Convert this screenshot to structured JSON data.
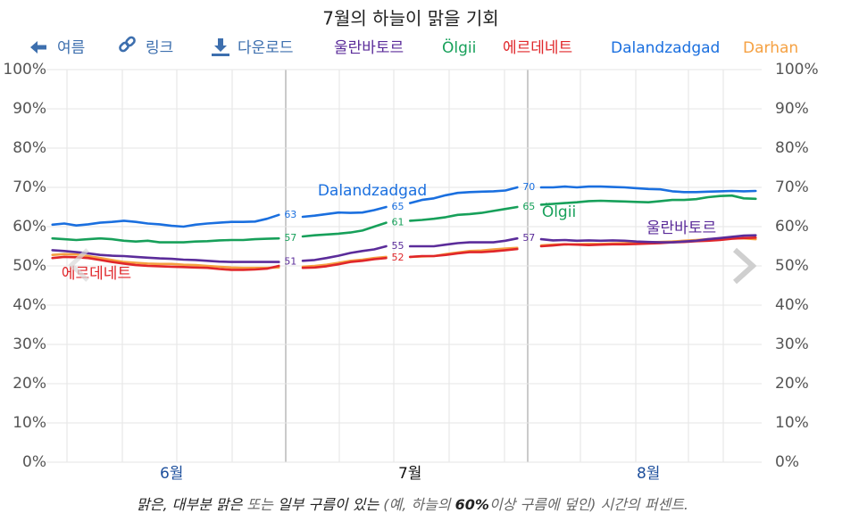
{
  "toolbar": {
    "back": "여름",
    "link": "링크",
    "download": "다운로드"
  },
  "chart_data": {
    "type": "line",
    "title": "7월의 하늘이 맑을 기회",
    "caption": [
      "맑은, 대부분 맑은",
      " 또는 ",
      "일부 구름이 있는",
      " (예, 하늘의 ",
      "60%",
      "이상 구름에 덮인) 시간의 퍼센트."
    ],
    "categories": [
      null,
      null,
      null,
      null,
      null,
      null,
      null,
      null,
      null,
      null,
      "6월",
      null,
      null,
      null,
      null,
      null,
      null,
      null,
      null,
      null,
      null,
      null,
      null,
      null,
      null,
      null,
      null,
      null,
      null,
      null,
      "7월",
      null,
      null,
      null,
      null,
      null,
      null,
      null,
      null,
      null,
      null,
      null,
      null,
      null,
      null,
      null,
      null,
      null,
      null,
      null,
      "8월",
      null,
      null,
      null,
      null,
      null,
      null,
      null,
      null,
      null
    ],
    "ylim": [
      0,
      100
    ],
    "yticks": [
      {
        "value": 0,
        "label": "0%"
      },
      {
        "value": 10,
        "label": "10%"
      },
      {
        "value": 20,
        "label": "20%"
      },
      {
        "value": 30,
        "label": "30%"
      },
      {
        "value": 40,
        "label": "40%"
      },
      {
        "value": 50,
        "label": "50%"
      },
      {
        "value": 60,
        "label": "60%"
      },
      {
        "value": 70,
        "label": "70%"
      },
      {
        "value": 80,
        "label": "80%"
      },
      {
        "value": 90,
        "label": "90%"
      },
      {
        "value": 100,
        "label": "100%"
      }
    ],
    "grid": true,
    "series": [
      {
        "name": "울란바토르",
        "color": "#5b2c9a",
        "values": [
          54,
          53.8,
          53.5,
          53.2,
          52.8,
          52.6,
          52.5,
          52.3,
          52.1,
          51.9,
          51.8,
          51.6,
          51.5,
          51.3,
          51.1,
          51,
          51,
          51,
          51,
          51,
          null,
          51.3,
          51.5,
          52,
          52.6,
          53.3,
          53.8,
          54.2,
          55,
          null,
          55,
          55,
          55,
          55.4,
          55.8,
          56,
          56,
          56,
          56.4,
          57,
          null,
          56.8,
          56.5,
          56.6,
          56.4,
          56.5,
          56.4,
          56.5,
          56.4,
          56.2,
          56.1,
          56,
          56,
          56.2,
          56.4,
          56.8,
          57.1,
          57.4,
          57.7,
          57.8
        ],
        "value_labels": [
          null,
          null,
          null,
          null,
          null,
          null,
          null,
          null,
          null,
          null,
          null,
          null,
          null,
          null,
          null,
          null,
          null,
          null,
          null,
          "51",
          null,
          null,
          null,
          null,
          null,
          null,
          null,
          null,
          "55",
          null,
          null,
          null,
          null,
          null,
          null,
          null,
          null,
          null,
          null,
          "57",
          null,
          null,
          null,
          null,
          null,
          null,
          null,
          null,
          null,
          null,
          null,
          null,
          null,
          null,
          null,
          null,
          null,
          null,
          null,
          null
        ]
      },
      {
        "name": "Ölgii",
        "color": "#17a05a",
        "values": [
          57,
          56.8,
          56.6,
          56.8,
          57,
          56.8,
          56.4,
          56.2,
          56.4,
          56,
          56,
          56,
          56.2,
          56.3,
          56.5,
          56.6,
          56.6,
          56.8,
          56.9,
          57,
          null,
          57.5,
          57.8,
          58,
          58.2,
          58.5,
          59,
          60,
          61,
          null,
          61.5,
          61.7,
          62,
          62.4,
          63,
          63.2,
          63.5,
          64,
          64.5,
          65,
          null,
          65.6,
          65.8,
          66,
          66.2,
          66.5,
          66.6,
          66.5,
          66.4,
          66.3,
          66.2,
          66.5,
          66.8,
          66.8,
          67,
          67.5,
          67.8,
          67.9,
          67.2,
          67.1
        ],
        "value_labels": [
          null,
          null,
          null,
          null,
          null,
          null,
          null,
          null,
          null,
          null,
          null,
          null,
          null,
          null,
          null,
          null,
          null,
          null,
          null,
          "57",
          null,
          null,
          null,
          null,
          null,
          null,
          null,
          null,
          "61",
          null,
          null,
          null,
          null,
          null,
          null,
          null,
          null,
          null,
          null,
          "65",
          null,
          null,
          null,
          null,
          null,
          null,
          null,
          null,
          null,
          null,
          null,
          null,
          null,
          null,
          null,
          null,
          null,
          null,
          null,
          null
        ]
      },
      {
        "name": "에르데네트",
        "color": "#e0262a",
        "values": [
          52,
          52.3,
          52.2,
          52,
          51.5,
          51,
          50.6,
          50.2,
          50,
          49.9,
          49.8,
          49.7,
          49.6,
          49.5,
          49.2,
          49,
          49,
          49.1,
          49.3,
          50,
          null,
          49.5,
          49.6,
          49.9,
          50.4,
          51,
          51.3,
          51.7,
          52,
          null,
          52.3,
          52.5,
          52.5,
          52.8,
          53.2,
          53.5,
          53.5,
          53.7,
          54,
          54.3,
          null,
          55,
          55.2,
          55.5,
          55.4,
          55.3,
          55.4,
          55.5,
          55.5,
          55.6,
          55.7,
          55.8,
          56,
          56.1,
          56.3,
          56.4,
          56.6,
          56.9,
          57.1,
          57.2
        ],
        "value_labels": [
          null,
          null,
          null,
          null,
          null,
          null,
          null,
          null,
          null,
          null,
          null,
          null,
          null,
          null,
          null,
          null,
          null,
          null,
          null,
          null,
          null,
          null,
          null,
          null,
          null,
          null,
          null,
          null,
          "52",
          null,
          null,
          null,
          null,
          null,
          null,
          null,
          null,
          null,
          null,
          null,
          null,
          null,
          null,
          null,
          null,
          null,
          null,
          null,
          null,
          null,
          null,
          null,
          null,
          null,
          null,
          null,
          null,
          null,
          null,
          null
        ]
      },
      {
        "name": "Dalandzadgad",
        "color": "#1a6fdf",
        "values": [
          60.5,
          60.8,
          60.3,
          60.6,
          61,
          61.2,
          61.5,
          61.2,
          60.8,
          60.6,
          60.2,
          60,
          60.5,
          60.8,
          61,
          61.2,
          61.2,
          61.3,
          62,
          63,
          null,
          62.5,
          62.8,
          63.2,
          63.6,
          63.5,
          63.6,
          64.2,
          65,
          null,
          66,
          66.8,
          67.2,
          68,
          68.6,
          68.8,
          68.9,
          69,
          69.2,
          70,
          null,
          70,
          70,
          70.2,
          70,
          70.2,
          70.2,
          70.1,
          70,
          69.8,
          69.6,
          69.5,
          69,
          68.8,
          68.8,
          68.9,
          69,
          69.1,
          69,
          69.1
        ],
        "value_labels": [
          null,
          null,
          null,
          null,
          null,
          null,
          null,
          null,
          null,
          null,
          null,
          null,
          null,
          null,
          null,
          null,
          null,
          null,
          null,
          "63",
          null,
          null,
          null,
          null,
          null,
          null,
          null,
          null,
          "65",
          null,
          null,
          null,
          null,
          null,
          null,
          null,
          null,
          null,
          null,
          "70",
          null,
          null,
          null,
          null,
          null,
          null,
          null,
          null,
          null,
          null,
          null,
          null,
          null,
          null,
          null,
          null,
          null,
          null,
          null,
          null
        ]
      },
      {
        "name": "Darhan",
        "color": "#f5a142",
        "values": [
          52.8,
          53,
          52.9,
          52.5,
          52,
          51.5,
          51,
          50.8,
          50.6,
          50.5,
          50.5,
          50.3,
          50.2,
          50,
          49.8,
          49.6,
          49.5,
          49.5,
          49.5,
          49.6,
          null,
          49.8,
          50,
          50.3,
          50.8,
          51.3,
          51.6,
          52,
          52.3,
          null,
          52.3,
          52.4,
          52.5,
          53,
          53.4,
          53.8,
          53.9,
          54.2,
          54.4,
          54.6,
          null,
          55.2,
          55.4,
          55.5,
          55.5,
          55.6,
          55.6,
          55.7,
          55.8,
          55.9,
          56,
          56.1,
          56.2,
          56.4,
          56.6,
          56.8,
          57,
          57,
          57,
          56.8
        ]
      }
    ]
  }
}
